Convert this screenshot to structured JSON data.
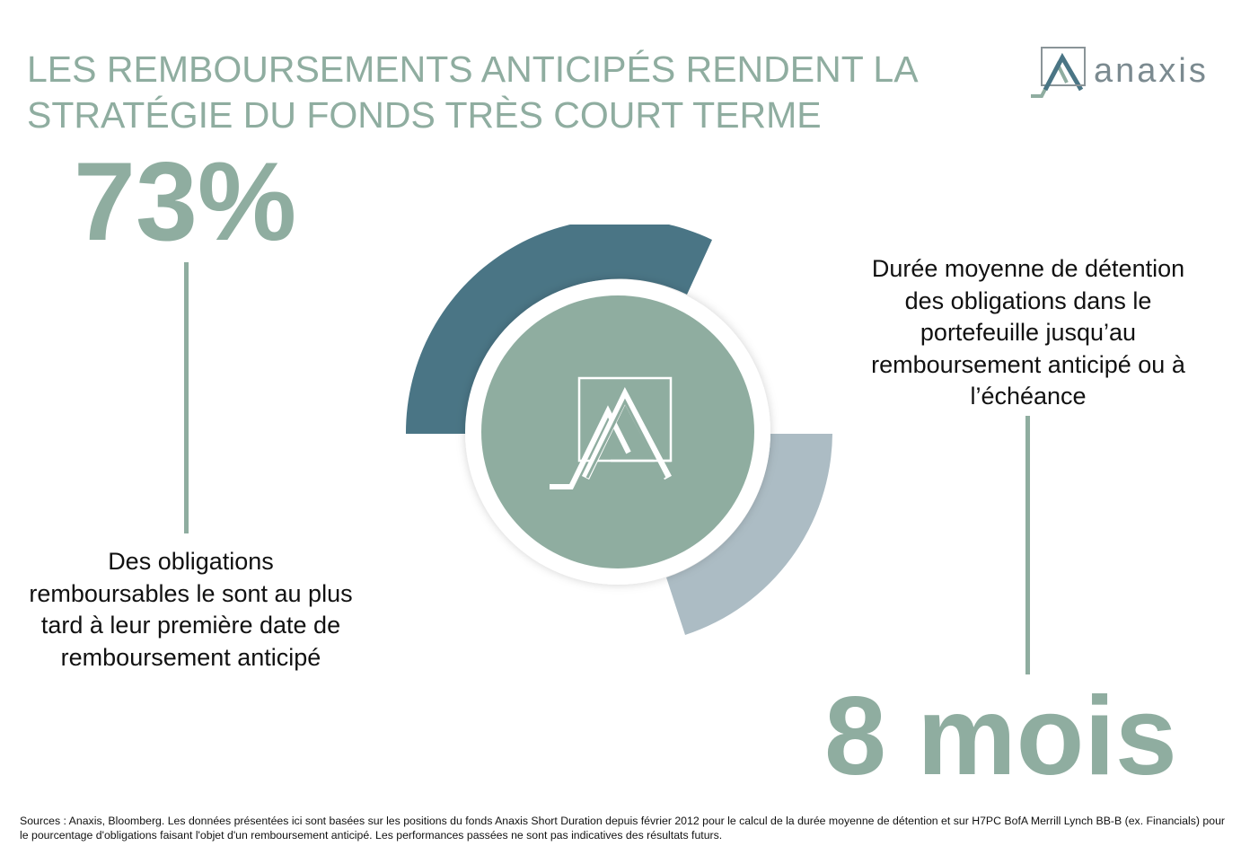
{
  "title": {
    "line1": "LES REMBOURSEMENTS ANTICIPÉS RENDENT LA",
    "line2": "STRATÉGIE DU FONDS TRÈS COURT TERME"
  },
  "logo": {
    "brand": "anaxis"
  },
  "left_stat": {
    "value": "73%",
    "description": "Des obligations remboursables le sont au plus tard à leur première date de remboursement anticipé"
  },
  "right_stat": {
    "value": "8 mois",
    "description": "Durée moyenne de détention des obligations dans le portefeuille jusqu’au remboursement anticipé ou à l’échéance"
  },
  "colors": {
    "accent": "#8fada0",
    "dark_arc": "#4a7585",
    "light_arc": "#acbcc4",
    "center": "#8fada0"
  },
  "footer": {
    "sources": "Sources : Anaxis, Bloomberg. Les données présentées ici sont basées sur les positions du fonds Anaxis Short Duration depuis février 2012 pour le calcul de la durée moyenne de détention et sur H7PC BofA Merrill Lynch BB-B (ex. Financials) pour le pourcentage d'obligations faisant l'objet d'un remboursement anticipé. Les performances passées ne sont pas indicatives des résultats futurs."
  }
}
